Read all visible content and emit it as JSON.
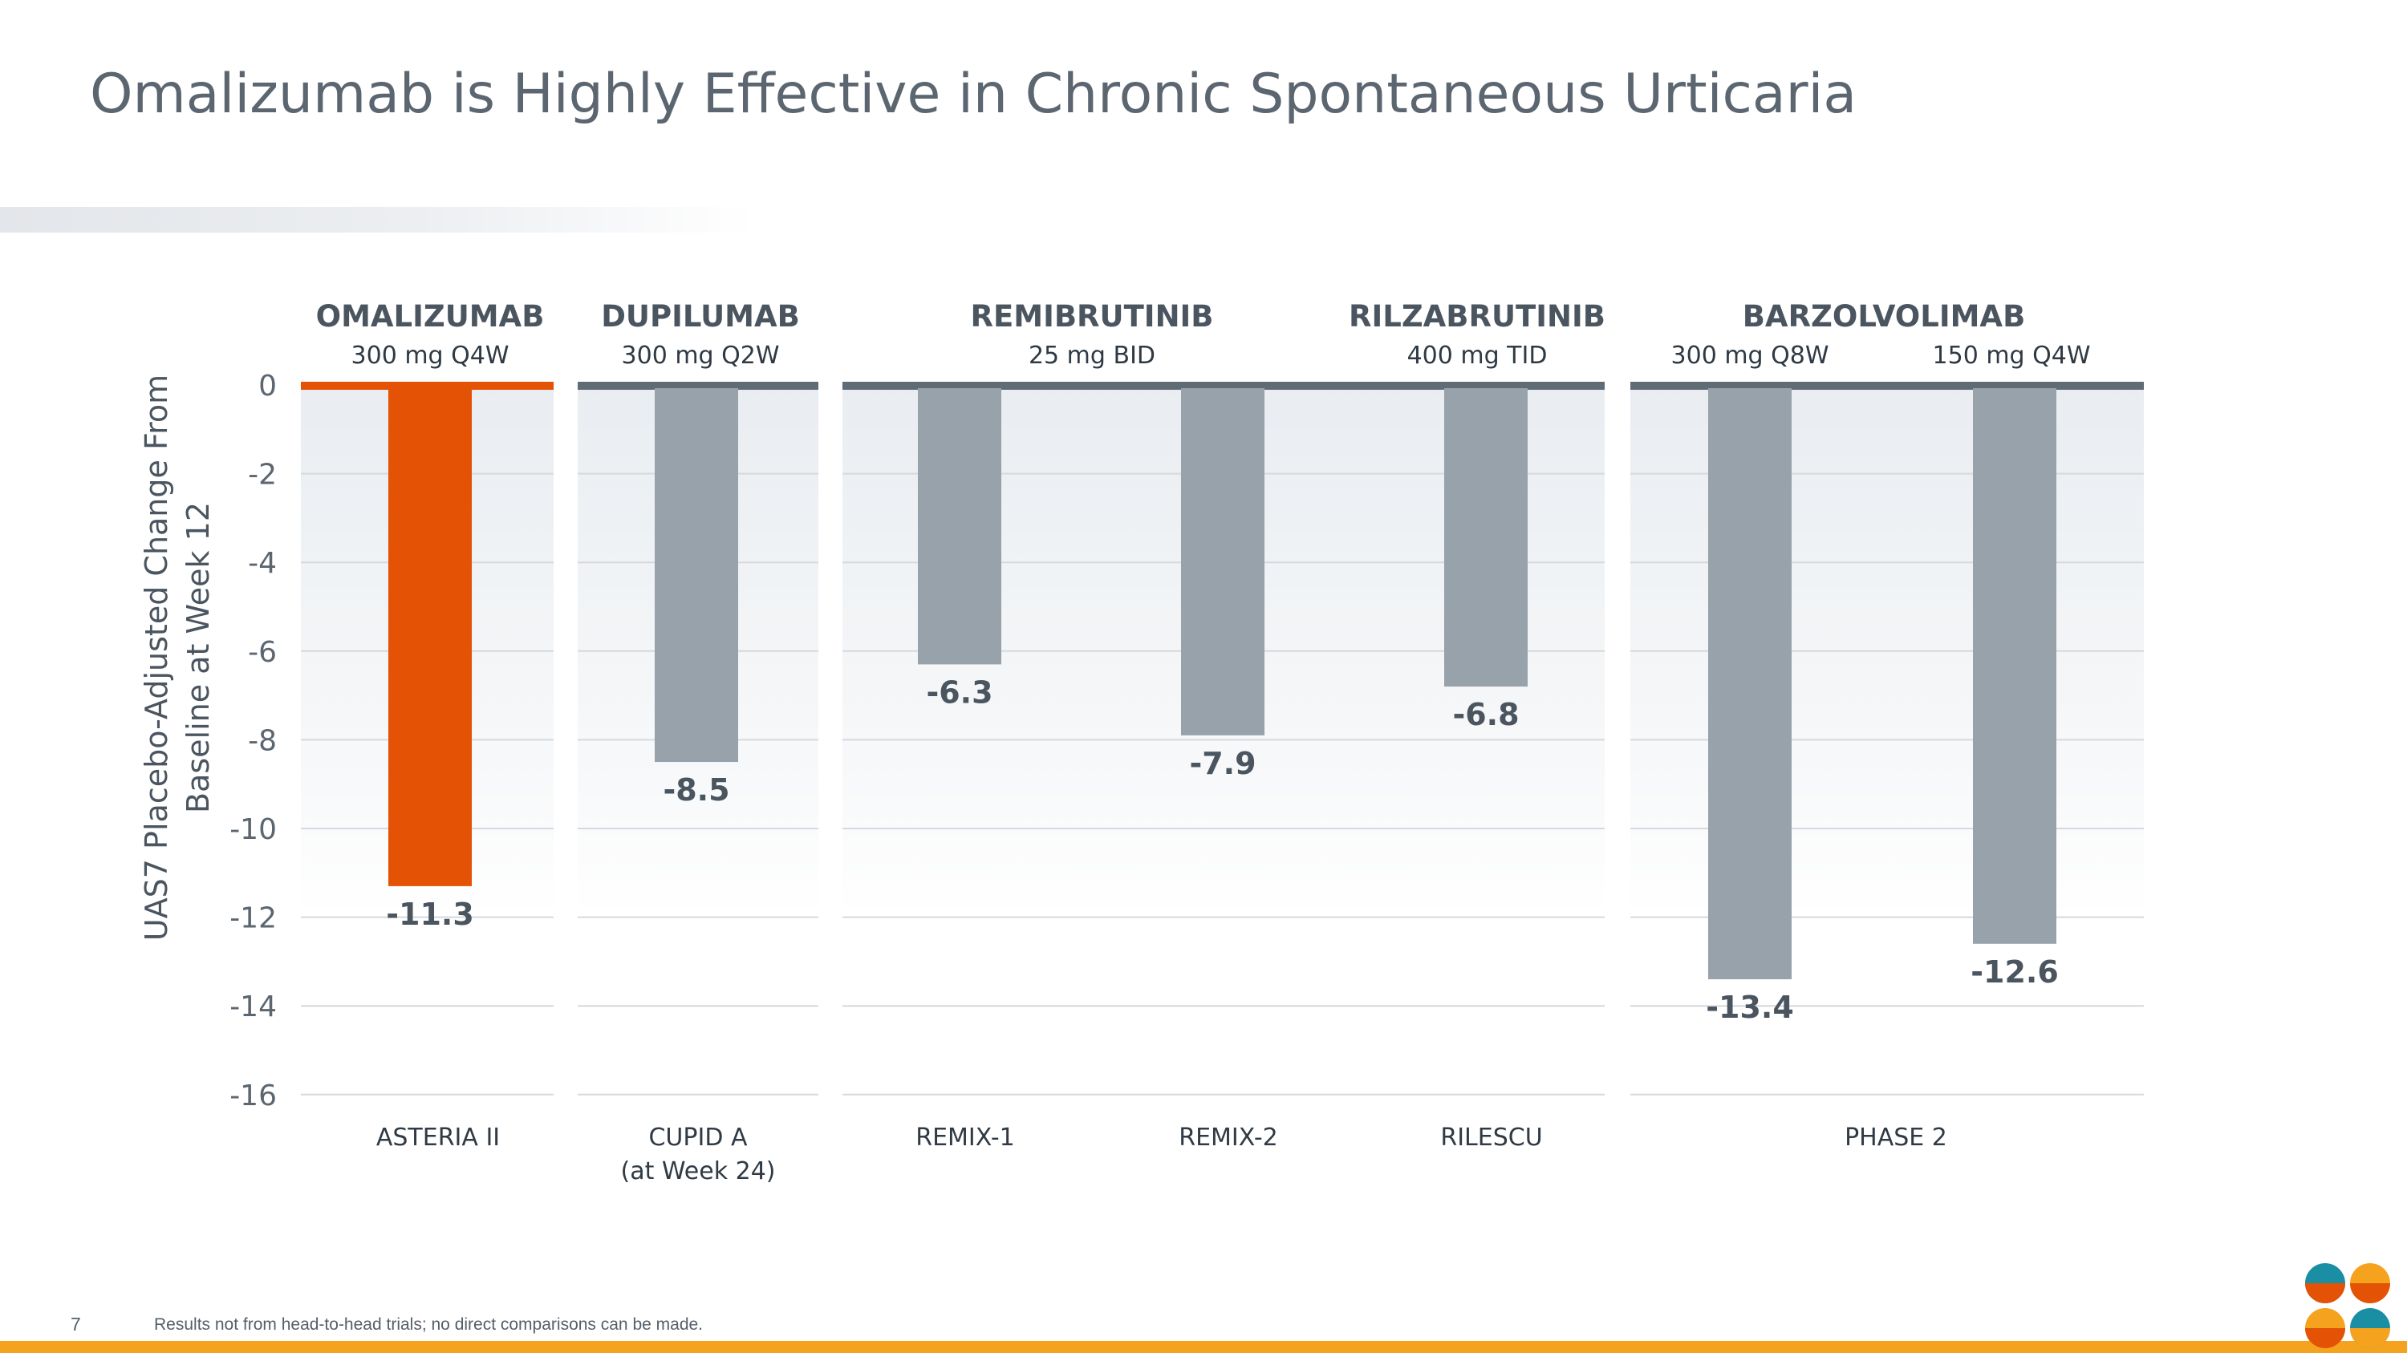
{
  "title": "Omalizumab is Highly Effective in Chronic Spontaneous Urticaria",
  "footnote": "Results not from head-to-head trials; no direct comparisons can be made.",
  "page_number": "7",
  "colors": {
    "highlight": "#e35205",
    "bar": "#98a2ab",
    "text": "#4a5560",
    "footer_bar": "#f5a31e"
  },
  "logo": {
    "name": "four-petal-logo",
    "colors": [
      "#1a8fa3",
      "#e35205",
      "#f5a31e"
    ]
  },
  "chart_data": {
    "type": "bar",
    "ylabel": "UAS7 Placebo-Adjusted Change From Baseline at Week 12",
    "ylim": [
      -16,
      0
    ],
    "yticks": [
      0,
      -2,
      -4,
      -6,
      -8,
      -10,
      -12,
      -14,
      -16
    ],
    "grid": true,
    "groups": [
      {
        "drug": "OMALIZUMAB",
        "dose": "300 mg Q4W",
        "trial": "ASTERIA II",
        "highlight": true,
        "bars": [
          {
            "value": -11.3,
            "label": "-11.3"
          }
        ]
      },
      {
        "drug": "DUPILUMAB",
        "dose": "300 mg Q2W",
        "trial": "CUPID A\n(at Week 24)",
        "highlight": false,
        "bars": [
          {
            "value": -8.5,
            "label": "-8.5"
          }
        ]
      },
      {
        "drug": "REMIBRUTINIB",
        "dose": "25 mg BID",
        "trials": [
          "REMIX-1",
          "REMIX-2"
        ],
        "highlight": false,
        "bars": [
          {
            "value": -6.3,
            "label": "-6.3"
          },
          {
            "value": -7.9,
            "label": "-7.9"
          }
        ]
      },
      {
        "drug": "RILZABRUTINIB",
        "dose": "400 mg TID",
        "trial": "RILESCU",
        "highlight": false,
        "bars": [
          {
            "value": -6.8,
            "label": "-6.8"
          }
        ]
      },
      {
        "drug": "BARZOLVOLIMAB",
        "doses": [
          "300 mg Q8W",
          "150 mg Q4W"
        ],
        "trial": "PHASE 2",
        "highlight": false,
        "bars": [
          {
            "value": -13.4,
            "label": "-13.4"
          },
          {
            "value": -12.6,
            "label": "-12.6"
          }
        ]
      }
    ]
  }
}
